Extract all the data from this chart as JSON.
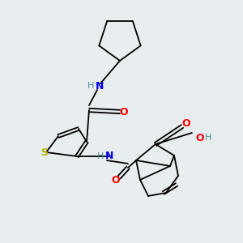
{
  "background_color": "#e8edf0",
  "atom_colors": {
    "S": "#b8b800",
    "N": "#0000ee",
    "O": "#ff0000",
    "H": "#4a9090",
    "C": "#000000"
  },
  "lw": 1.3,
  "figsize": [
    3.0,
    3.0
  ],
  "dpi": 100
}
